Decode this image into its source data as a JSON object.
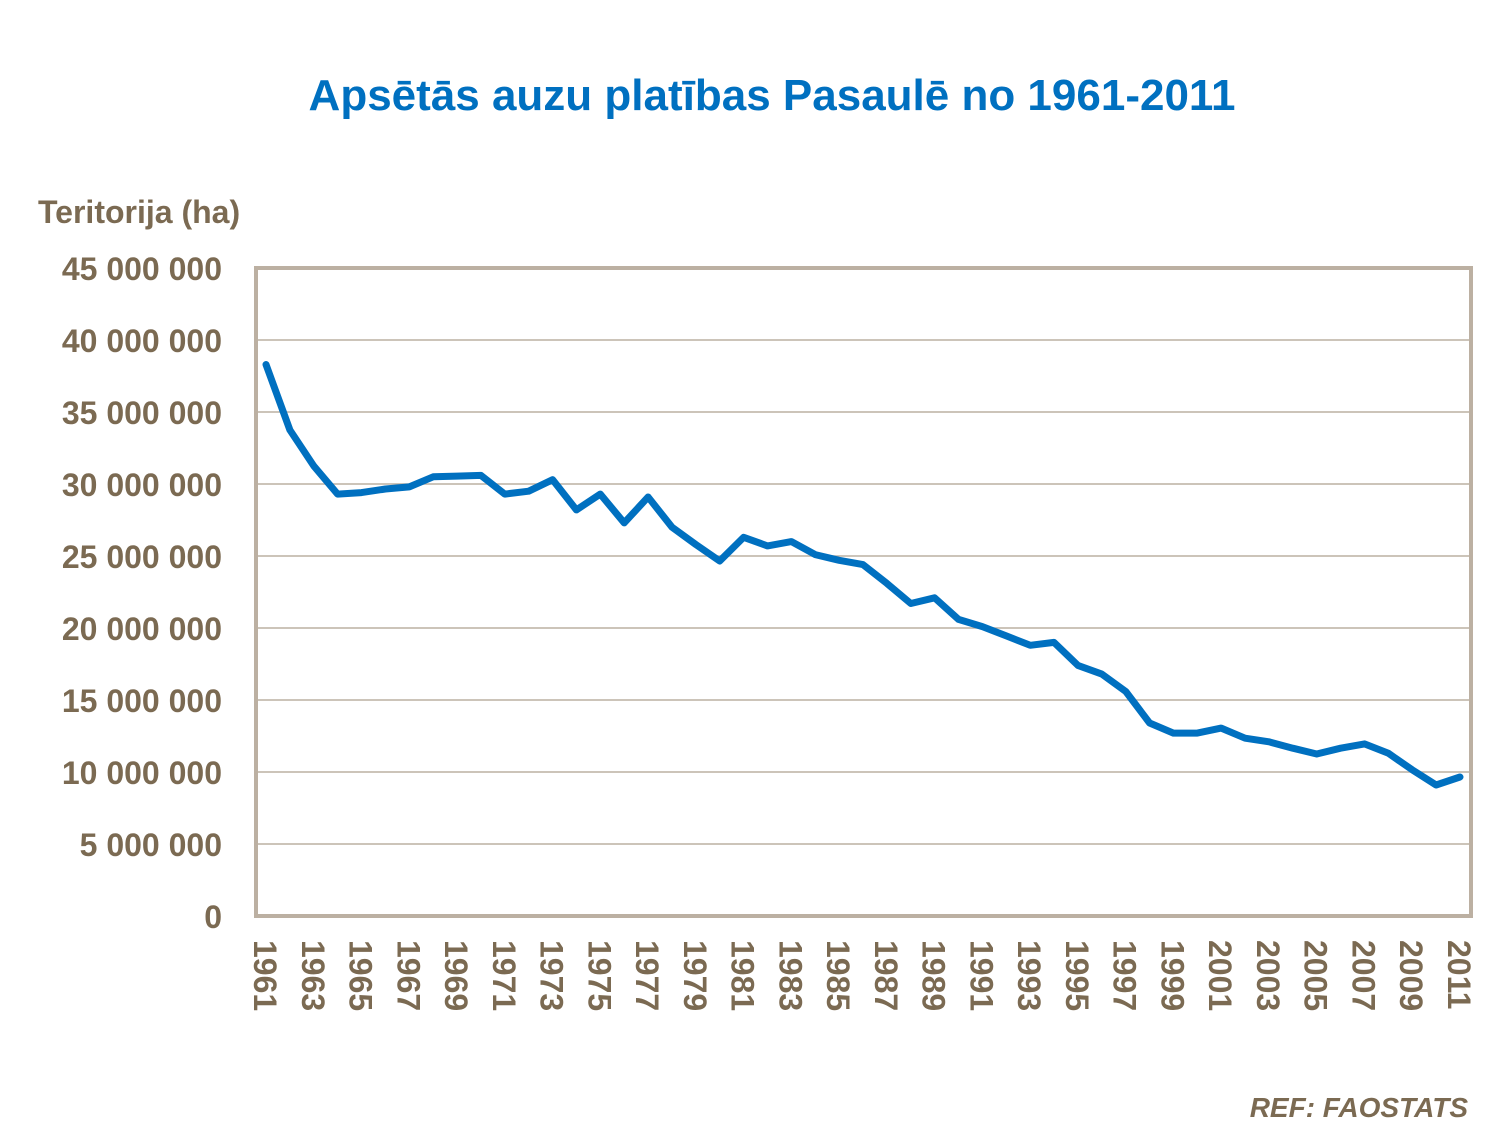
{
  "chart_data": {
    "type": "line",
    "title": "Apsētās auzu platības Pasaulē no 1961-2011",
    "xlabel": "",
    "ylabel": "Teritorija (ha)",
    "source": "REF: FAOSTATS",
    "ylim": [
      0,
      45000000
    ],
    "yticks": [
      "0",
      "5 000 000",
      "10 000 000",
      "15 000 000",
      "20 000 000",
      "25 000 000",
      "30 000 000",
      "35 000 000",
      "40 000 000",
      "45 000 000"
    ],
    "ytick_values": [
      0,
      5000000,
      10000000,
      15000000,
      20000000,
      25000000,
      30000000,
      35000000,
      40000000,
      45000000
    ],
    "xticks": [
      "1961",
      "1963",
      "1965",
      "1967",
      "1969",
      "1971",
      "1973",
      "1975",
      "1977",
      "1979",
      "1981",
      "1983",
      "1985",
      "1987",
      "1989",
      "1991",
      "1993",
      "1995",
      "1997",
      "1999",
      "2001",
      "2003",
      "2005",
      "2007",
      "2009",
      "2011"
    ],
    "grid": true,
    "line_color": "#0070c0",
    "x": [
      1961,
      1962,
      1963,
      1964,
      1965,
      1966,
      1967,
      1968,
      1969,
      1970,
      1971,
      1972,
      1973,
      1974,
      1975,
      1976,
      1977,
      1978,
      1979,
      1980,
      1981,
      1982,
      1983,
      1984,
      1985,
      1986,
      1987,
      1988,
      1989,
      1990,
      1991,
      1992,
      1993,
      1994,
      1995,
      1996,
      1997,
      1998,
      1999,
      2000,
      2001,
      2002,
      2003,
      2004,
      2005,
      2006,
      2007,
      2008,
      2009,
      2010,
      2011
    ],
    "values": [
      38300000,
      33750000,
      31250000,
      29300000,
      29400000,
      29650000,
      29800000,
      30500000,
      30550000,
      30600000,
      29300000,
      29500000,
      30300000,
      28200000,
      29300000,
      27300000,
      29100000,
      27000000,
      25800000,
      24650000,
      26300000,
      25700000,
      26000000,
      25100000,
      24700000,
      24400000,
      23100000,
      21700000,
      22100000,
      20600000,
      20100000,
      19450000,
      18800000,
      19000000,
      17400000,
      16800000,
      15600000,
      13400000,
      12700000,
      12700000,
      13050000,
      12350000,
      12100000,
      11650000,
      11250000,
      11650000,
      11950000,
      11300000,
      10150000,
      9100000,
      9650000
    ]
  }
}
